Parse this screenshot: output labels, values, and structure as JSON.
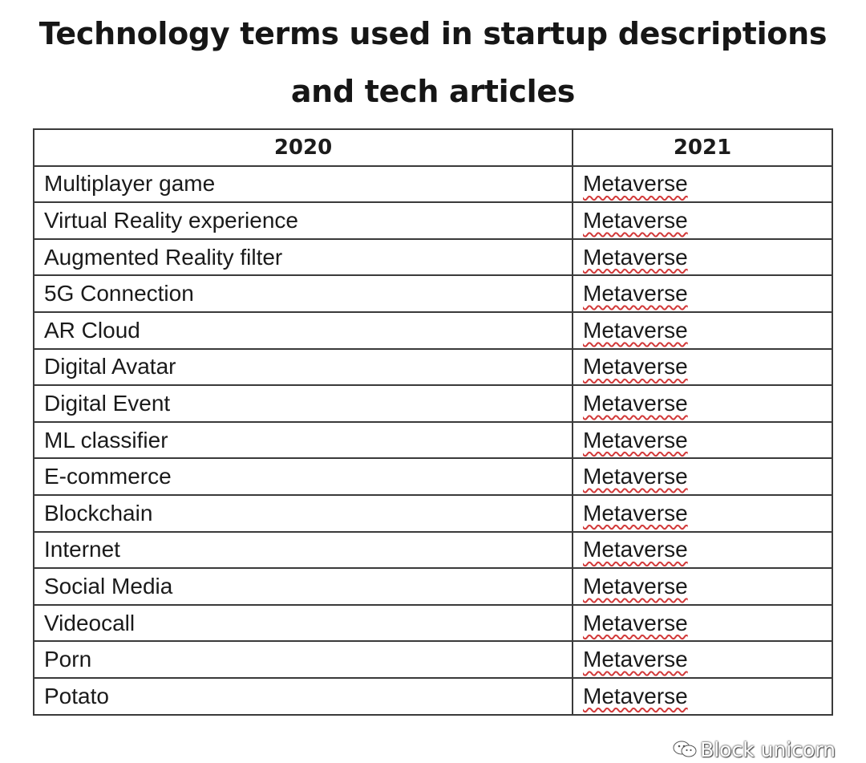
{
  "title": {
    "line1": "Technology terms used in startup descriptions",
    "line2": "and tech articles"
  },
  "table": {
    "headers": [
      "2020",
      "2021"
    ],
    "rows": [
      {
        "term": "Multiplayer game",
        "after": "Metaverse"
      },
      {
        "term": "Virtual Reality experience",
        "after": "Metaverse"
      },
      {
        "term": "Augmented Reality filter",
        "after": "Metaverse"
      },
      {
        "term": "5G Connection",
        "after": "Metaverse"
      },
      {
        "term": "AR Cloud",
        "after": "Metaverse"
      },
      {
        "term": "Digital Avatar",
        "after": "Metaverse"
      },
      {
        "term": "Digital Event",
        "after": "Metaverse"
      },
      {
        "term": "ML classifier",
        "after": "Metaverse"
      },
      {
        "term": "E-commerce",
        "after": "Metaverse"
      },
      {
        "term": "Blockchain",
        "after": "Metaverse"
      },
      {
        "term": "Internet",
        "after": "Metaverse"
      },
      {
        "term": "Social Media",
        "after": "Metaverse"
      },
      {
        "term": "Videocall",
        "after": "Metaverse"
      },
      {
        "term": "Porn",
        "after": "Metaverse"
      },
      {
        "term": "Potato",
        "after": "Metaverse"
      }
    ]
  },
  "watermark": {
    "icon": "wechat-icon",
    "text": "Block unicorn"
  },
  "colors": {
    "spellcheck_underline": "#d23a3a",
    "border": "#3a3a3a"
  }
}
